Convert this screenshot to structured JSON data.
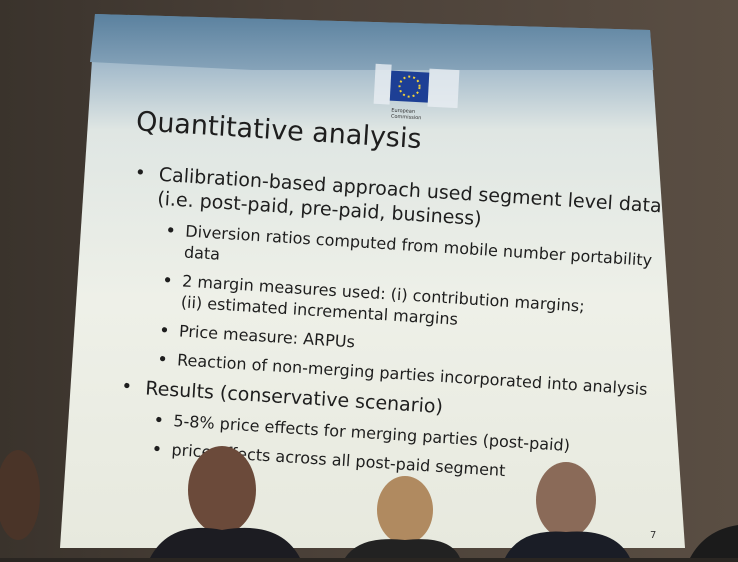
{
  "slide": {
    "logo_text": [
      "European",
      "Commission"
    ],
    "title": "Quantitative analysis",
    "items": [
      {
        "level": 1,
        "lines": [
          "Calibration-based approach used segment level data",
          "(i.e. post-paid, pre-paid, business)"
        ]
      },
      {
        "level": 2,
        "lines": [
          "Diversion ratios computed from mobile number portability",
          "data"
        ]
      },
      {
        "level": 2,
        "lines": [
          "2 margin measures used: (i) contribution margins;",
          "(ii) estimated incremental margins"
        ]
      },
      {
        "level": 2,
        "lines": [
          "Price measure: ARPUs"
        ]
      },
      {
        "level": 2,
        "lines": [
          "Reaction of non-merging parties incorporated into analysis"
        ]
      },
      {
        "level": 1,
        "lines": [
          "Results (conservative scenario)"
        ]
      },
      {
        "level": 2,
        "lines": [
          "5-8% price effects for merging parties (post-paid)"
        ]
      },
      {
        "level": 2,
        "lines": [
          "price effects across all post-paid segment"
        ]
      }
    ],
    "page_number": "7"
  }
}
